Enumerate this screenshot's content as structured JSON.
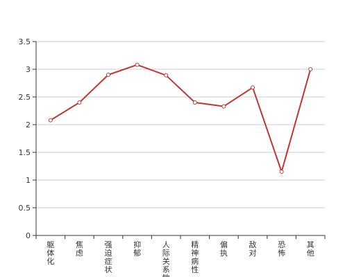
{
  "chart_data": {
    "type": "line",
    "categories": [
      "躯体化",
      "焦虑",
      "强迫症状",
      "抑郁",
      "人际关系敏感",
      "精神病性",
      "偏执",
      "敌对",
      "恐怖",
      "其他"
    ],
    "values": [
      2.08,
      2.4,
      2.9,
      3.08,
      2.89,
      2.4,
      2.33,
      2.67,
      1.15,
      3.0
    ],
    "title": "",
    "xlabel": "",
    "ylabel": "",
    "ylim": [
      0,
      3.5
    ],
    "yticks": [
      "0",
      "0.5",
      "1",
      "1.5",
      "2",
      "2.5",
      "3",
      "3.5"
    ],
    "grid": true,
    "colors": {
      "line": "#c23531",
      "grid": "#cccccc",
      "axis": "#333333",
      "point_fill": "#ffffff"
    }
  }
}
